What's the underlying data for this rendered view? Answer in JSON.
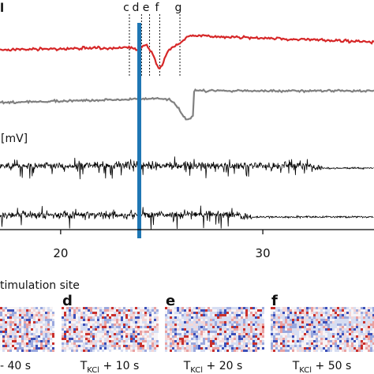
{
  "figure": {
    "corner_label": "l",
    "mv_label": "[mV]",
    "section_label": "timulation site",
    "time_markers": [
      "c",
      "d",
      "e",
      "f",
      "g"
    ],
    "x_ticks": [
      "20",
      "30"
    ],
    "panels": [
      {
        "letter": "",
        "caption_main": "- 40 s",
        "caption_sub": ""
      },
      {
        "letter": "d",
        "caption_main": "T",
        "caption_sub": "KCl",
        "caption_tail": " + 10 s"
      },
      {
        "letter": "e",
        "caption_main": "T",
        "caption_sub": "KCl",
        "caption_tail": " + 20 s"
      },
      {
        "letter": "f",
        "caption_main": "T",
        "caption_sub": "KCl",
        "caption_tail": " + 50 s"
      }
    ]
  },
  "chart_data": {
    "type": "line",
    "title": "",
    "xlabel": "",
    "ylabel": "[mV]",
    "xlim": [
      17,
      35.5
    ],
    "x_ticks": [
      20,
      30
    ],
    "stimulus_time": 24,
    "marker_times": {
      "c": 23.4,
      "d": 24.0,
      "e": 24.4,
      "f": 24.9,
      "g": 25.9
    },
    "series": [
      {
        "trace": "top-red",
        "color": "#d62728",
        "feature": "dip",
        "dip_x": 24.9
      },
      {
        "trace": "gray",
        "color": "#808080",
        "feature": "dip",
        "dip_x": 26.3
      },
      {
        "trace": "black-1",
        "color": "#000000",
        "feature": "noise",
        "quiet_after": 32.4
      },
      {
        "trace": "black-2",
        "color": "#000000",
        "feature": "noise",
        "quiet_after": 28.9
      }
    ],
    "stimulus_color": "#1f77b4"
  }
}
